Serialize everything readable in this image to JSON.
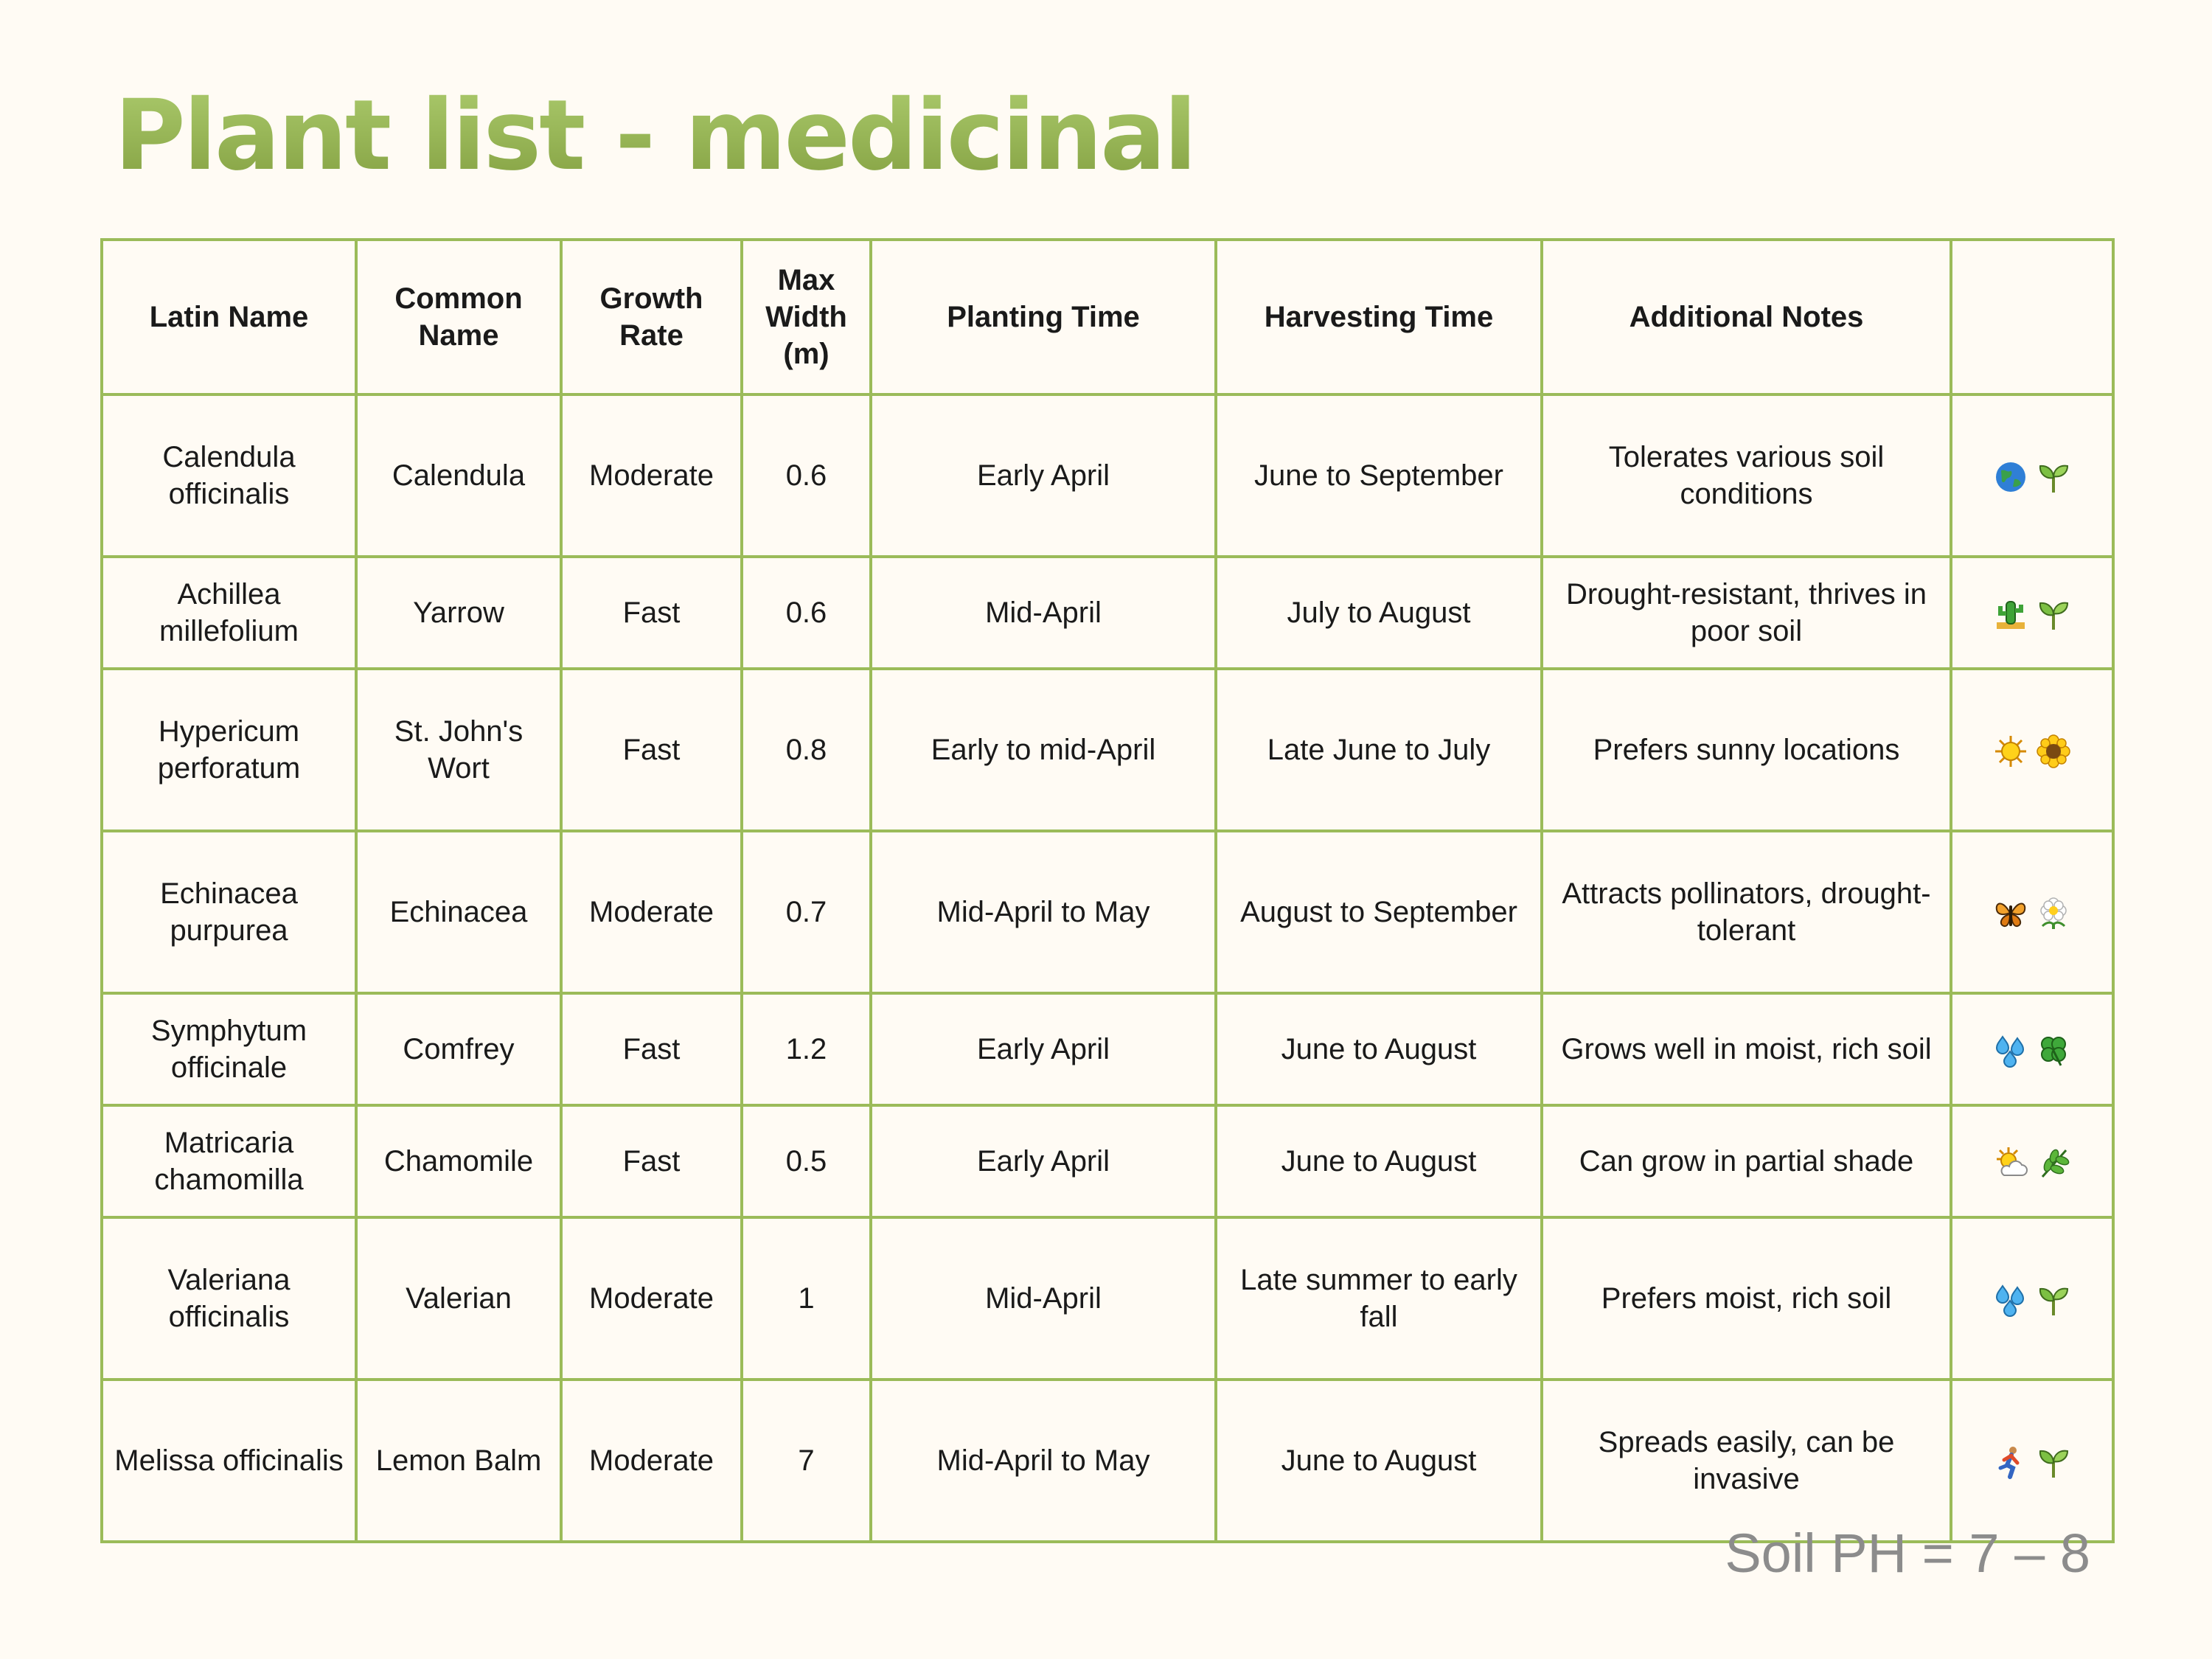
{
  "title": "Plant list - medicinal",
  "table": {
    "headers": [
      "Latin Name",
      "Common Name",
      "Growth Rate",
      "Max Width (m)",
      "Planting Time",
      "Harvesting Time",
      "Additional Notes",
      ""
    ],
    "rows": [
      {
        "latin": "Calendula officinalis",
        "common": "Calendula",
        "growth": "Moderate",
        "width": "0.6",
        "planting": "Early April",
        "harvesting": "June to September",
        "notes": "Tolerates various soil conditions",
        "icons": [
          "globe-icon",
          "seedling-icon"
        ]
      },
      {
        "latin": "Achillea millefolium",
        "common": "Yarrow",
        "growth": "Fast",
        "width": "0.6",
        "planting": "Mid-April",
        "harvesting": "July to August",
        "notes": "Drought-resistant, thrives in poor soil",
        "icons": [
          "cactus-icon",
          "seedling-icon"
        ]
      },
      {
        "latin": "Hypericum perforatum",
        "common": "St. John's Wort",
        "growth": "Fast",
        "width": "0.8",
        "planting": "Early to mid-April",
        "harvesting": "Late June to July",
        "notes": "Prefers sunny locations",
        "icons": [
          "sun-icon",
          "sunflower-icon"
        ]
      },
      {
        "latin": "Echinacea purpurea",
        "common": "Echinacea",
        "growth": "Moderate",
        "width": "0.7",
        "planting": "Mid-April to May",
        "harvesting": "August to September",
        "notes": "Attracts pollinators, drought-tolerant",
        "icons": [
          "butterfly-icon",
          "flower-icon"
        ]
      },
      {
        "latin": "Symphytum officinale",
        "common": "Comfrey",
        "growth": "Fast",
        "width": "1.2",
        "planting": "Early April",
        "harvesting": "June to August",
        "notes": "Grows well in moist, rich soil",
        "icons": [
          "water-drops-icon",
          "clover-icon"
        ]
      },
      {
        "latin": "Matricaria chamomilla",
        "common": "Chamomile",
        "growth": "Fast",
        "width": "0.5",
        "planting": "Early April",
        "harvesting": "June to August",
        "notes": "Can grow in partial shade",
        "icons": [
          "sun-cloud-icon",
          "herb-icon"
        ]
      },
      {
        "latin": "Valeriana officinalis",
        "common": "Valerian",
        "growth": "Moderate",
        "width": "1",
        "planting": "Mid-April",
        "harvesting": "Late summer to early fall",
        "notes": "Prefers moist, rich soil",
        "icons": [
          "water-drops-icon",
          "seedling-icon"
        ]
      },
      {
        "latin": "Melissa officinalis",
        "common": "Lemon Balm",
        "growth": "Moderate",
        "width": "7",
        "planting": "Mid-April to May",
        "harvesting": "June to August",
        "notes": "Spreads easily, can be invasive",
        "icons": [
          "runner-icon",
          "seedling-icon"
        ]
      }
    ]
  },
  "footer": "Soil PH = 7 – 8"
}
